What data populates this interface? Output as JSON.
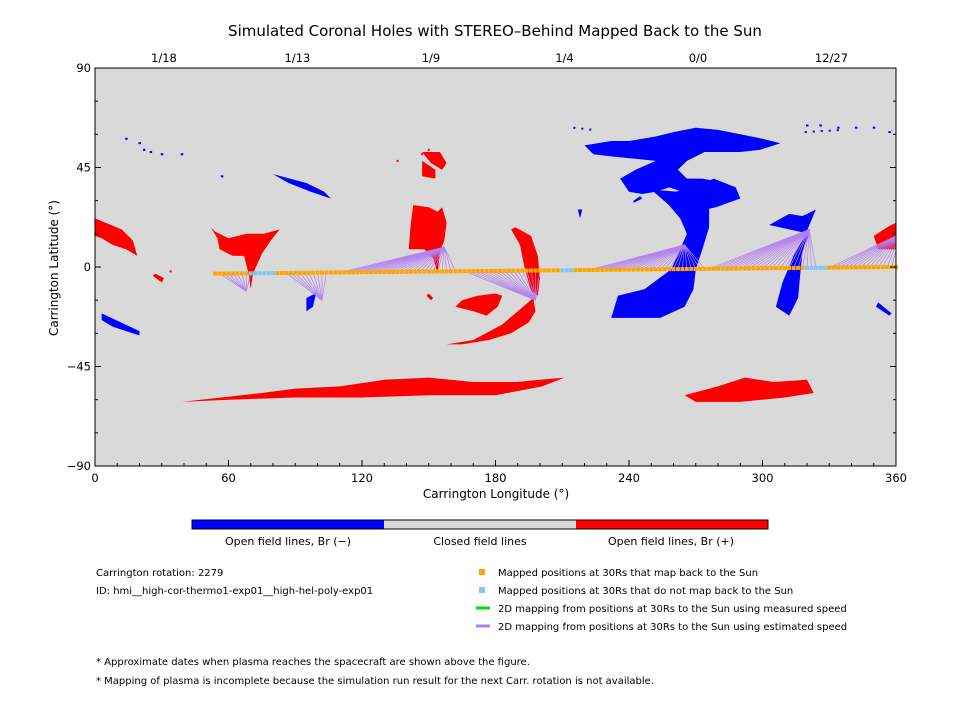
{
  "chart_data": {
    "type": "scatter",
    "title": "Simulated Coronal Holes with STEREO–Behind Mapped Back to the Sun",
    "xlabel": "Carrington Longitude (°)",
    "ylabel": "Carrington Latitude (°)",
    "xlim": [
      0,
      360
    ],
    "ylim": [
      -90,
      90
    ],
    "x_ticks": [
      0,
      60,
      120,
      180,
      240,
      300,
      360
    ],
    "y_ticks": [
      90,
      45,
      0,
      -45,
      -90
    ],
    "y_tick_labels": [
      "90",
      "45",
      "0",
      "−45",
      "−90"
    ],
    "top_axis_dates": [
      {
        "lon": 31,
        "label": "1/18"
      },
      {
        "lon": 91,
        "label": "1/13"
      },
      {
        "lon": 151,
        "label": "1/9"
      },
      {
        "lon": 211,
        "label": "1/4"
      },
      {
        "lon": 271,
        "label": "0/0"
      },
      {
        "lon": 331,
        "label": "12/27"
      }
    ],
    "colors": {
      "closed": "#d9d9d9",
      "open_negative": "#0000ff",
      "open_positive": "#ff0000",
      "mapped": "#ffa500",
      "unmapped": "#7ec8f8",
      "measured_line": "#00dd00",
      "estimated_line": "#b380f0"
    },
    "positive_regions": [
      [
        [
          0,
          22
        ],
        [
          12,
          17
        ],
        [
          17,
          12
        ],
        [
          19,
          5
        ],
        [
          14,
          8
        ],
        [
          8,
          10
        ],
        [
          3,
          13
        ],
        [
          0,
          14
        ]
      ],
      [
        [
          27,
          -3
        ],
        [
          31,
          -5
        ],
        [
          30,
          -7
        ],
        [
          26,
          -4
        ]
      ],
      [
        [
          52,
          18
        ],
        [
          55,
          13
        ],
        [
          56,
          8
        ],
        [
          62,
          5
        ],
        [
          67,
          5
        ],
        [
          69,
          -3
        ],
        [
          70,
          -10
        ],
        [
          71,
          -3
        ],
        [
          75,
          6
        ],
        [
          79,
          12
        ],
        [
          83,
          17
        ],
        [
          76,
          15
        ],
        [
          68,
          15
        ],
        [
          60,
          13
        ],
        [
          54,
          16
        ]
      ],
      [
        [
          141,
          8
        ],
        [
          142,
          20
        ],
        [
          143,
          28
        ],
        [
          150,
          27
        ],
        [
          154,
          25
        ],
        [
          156,
          27
        ],
        [
          158,
          20
        ],
        [
          157,
          12
        ],
        [
          155,
          7
        ],
        [
          154,
          -3
        ],
        [
          152,
          4
        ],
        [
          148,
          8
        ]
      ],
      [
        [
          147,
          52
        ],
        [
          155,
          52
        ],
        [
          158,
          47
        ],
        [
          156,
          44
        ],
        [
          151,
          47
        ]
      ],
      [
        [
          162,
          -18
        ],
        [
          170,
          -20
        ],
        [
          176,
          -22
        ],
        [
          181,
          -18
        ],
        [
          183,
          -13
        ],
        [
          180,
          -12
        ],
        [
          172,
          -13
        ],
        [
          165,
          -15
        ]
      ],
      [
        [
          158,
          -35
        ],
        [
          170,
          -33
        ],
        [
          183,
          -26
        ],
        [
          190,
          -20
        ],
        [
          197,
          -14
        ],
        [
          198,
          -20
        ],
        [
          195,
          -25
        ],
        [
          187,
          -30
        ],
        [
          177,
          -33
        ],
        [
          165,
          -35
        ]
      ],
      [
        [
          189,
          18
        ],
        [
          196,
          14
        ],
        [
          199,
          5
        ],
        [
          200,
          -5
        ],
        [
          199,
          -13
        ],
        [
          196,
          -11
        ],
        [
          193,
          0
        ],
        [
          191,
          10
        ],
        [
          187,
          17
        ]
      ],
      [
        [
          39,
          -61
        ],
        [
          75,
          -57
        ],
        [
          90,
          -55
        ],
        [
          110,
          -54
        ],
        [
          130,
          -51
        ],
        [
          150,
          -50
        ],
        [
          170,
          -52
        ],
        [
          190,
          -52
        ],
        [
          200,
          -51
        ],
        [
          211,
          -50
        ],
        [
          201,
          -54
        ],
        [
          180,
          -58
        ],
        [
          150,
          -58
        ],
        [
          120,
          -59
        ],
        [
          90,
          -59
        ],
        [
          60,
          -60
        ]
      ],
      [
        [
          265,
          -58
        ],
        [
          280,
          -54
        ],
        [
          292,
          -50
        ],
        [
          305,
          -52
        ],
        [
          320,
          -51
        ],
        [
          323,
          -57
        ],
        [
          310,
          -59
        ],
        [
          290,
          -61
        ],
        [
          270,
          -61
        ]
      ],
      [
        [
          350,
          14
        ],
        [
          356,
          18
        ],
        [
          360,
          20
        ],
        [
          360,
          8
        ],
        [
          352,
          8
        ]
      ],
      [
        [
          147,
          48
        ],
        [
          153,
          44
        ],
        [
          153,
          40
        ],
        [
          147,
          41
        ]
      ],
      [
        [
          150,
          -12
        ],
        [
          152,
          -14
        ],
        [
          151,
          -15
        ],
        [
          149,
          -13
        ]
      ]
    ],
    "negative_regions": [
      [
        [
          220,
          55
        ],
        [
          232,
          57
        ],
        [
          240,
          57
        ],
        [
          252,
          59
        ],
        [
          260,
          61
        ],
        [
          270,
          63
        ],
        [
          280,
          62
        ],
        [
          290,
          60
        ],
        [
          300,
          58
        ],
        [
          308,
          56
        ],
        [
          299,
          53
        ],
        [
          290,
          52
        ],
        [
          281,
          52
        ],
        [
          274,
          52
        ],
        [
          266,
          48
        ],
        [
          262,
          44
        ],
        [
          266,
          40
        ],
        [
          273,
          40
        ],
        [
          278,
          39
        ],
        [
          274,
          36
        ],
        [
          264,
          34
        ],
        [
          258,
          36
        ],
        [
          252,
          34
        ],
        [
          246,
          33
        ],
        [
          240,
          34
        ],
        [
          236,
          40
        ],
        [
          243,
          44
        ],
        [
          252,
          48
        ],
        [
          232,
          50
        ],
        [
          224,
          51
        ]
      ],
      [
        [
          250,
          35
        ],
        [
          258,
          28
        ],
        [
          263,
          22
        ],
        [
          266,
          15
        ],
        [
          263,
          8
        ],
        [
          259,
          -1
        ],
        [
          247,
          -10
        ],
        [
          235,
          -13
        ],
        [
          232,
          -23
        ],
        [
          254,
          -23
        ],
        [
          265,
          -18
        ],
        [
          269,
          -10
        ],
        [
          270,
          -1
        ],
        [
          273,
          8
        ],
        [
          276,
          18
        ],
        [
          276,
          27
        ],
        [
          272,
          32
        ],
        [
          262,
          34
        ]
      ],
      [
        [
          303,
          19
        ],
        [
          312,
          24
        ],
        [
          318,
          23
        ],
        [
          324,
          26
        ],
        [
          319,
          14
        ],
        [
          314,
          5
        ],
        [
          309,
          -7
        ],
        [
          306,
          -18
        ],
        [
          312,
          -22
        ],
        [
          316,
          -14
        ],
        [
          317,
          -3
        ],
        [
          318,
          7
        ],
        [
          321,
          15
        ]
      ],
      [
        [
          261,
          34
        ],
        [
          272,
          37
        ],
        [
          278,
          40
        ],
        [
          288,
          36
        ],
        [
          290,
          31
        ],
        [
          279,
          27
        ],
        [
          270,
          25
        ]
      ],
      [
        [
          80,
          42
        ],
        [
          95,
          38
        ],
        [
          103,
          34
        ],
        [
          106,
          31
        ],
        [
          97,
          34
        ],
        [
          87,
          38
        ]
      ],
      [
        [
          3,
          -21
        ],
        [
          20,
          -29
        ],
        [
          20,
          -31
        ],
        [
          8,
          -27
        ],
        [
          3,
          -24
        ]
      ],
      [
        [
          95,
          -14
        ],
        [
          99,
          -12
        ],
        [
          100,
          -9
        ],
        [
          98,
          -18
        ],
        [
          95,
          -20
        ]
      ],
      [
        [
          242,
          30
        ],
        [
          245,
          32
        ],
        [
          246,
          31
        ],
        [
          242,
          29
        ]
      ],
      [
        [
          217,
          26
        ],
        [
          218,
          22
        ],
        [
          219,
          26
        ]
      ],
      [
        [
          352,
          -16
        ],
        [
          358,
          -21
        ],
        [
          357,
          -22
        ],
        [
          351,
          -18
        ]
      ],
      [
        [
          215,
          63
        ],
        [
          224,
          62
        ]
      ],
      [
        [
          319,
          61
        ],
        [
          336,
          62
        ]
      ]
    ],
    "tiny_negative": [
      [
        14,
        58
      ],
      [
        20,
        56
      ],
      [
        22,
        53
      ],
      [
        25,
        52
      ],
      [
        30,
        51
      ],
      [
        39,
        51
      ],
      [
        57,
        41
      ],
      [
        320,
        64
      ],
      [
        326,
        64
      ],
      [
        334,
        63
      ],
      [
        342,
        63
      ],
      [
        350,
        63
      ],
      [
        357,
        61
      ],
      [
        365,
        61
      ]
    ],
    "tiny_positive": [
      [
        150,
        53
      ],
      [
        155,
        50
      ],
      [
        136,
        48
      ],
      [
        147,
        51
      ],
      [
        34,
        -2
      ],
      [
        74,
        7
      ]
    ],
    "mapped_points": {
      "lon_start": 54,
      "lon_end": 360,
      "step": 2,
      "lat_start": -3,
      "lat_end": 0,
      "unmapped_lon_ranges": [
        [
          70,
          80
        ],
        [
          210,
          214
        ],
        [
          320,
          328
        ]
      ]
    },
    "estimated_lines": [
      {
        "foot": [
          68,
          -11
        ],
        "x0": 56,
        "x1": 70
      },
      {
        "foot": [
          102,
          -15
        ],
        "x0": 86,
        "x1": 104
      },
      {
        "foot": [
          157,
          9
        ],
        "x0": 110,
        "x1": 163
      },
      {
        "foot": [
          198,
          -15
        ],
        "x0": 166,
        "x1": 201
      },
      {
        "foot": [
          265,
          10
        ],
        "x0": 222,
        "x1": 275
      },
      {
        "foot": [
          321,
          17
        ],
        "x0": 276,
        "x1": 325
      },
      {
        "foot": [
          362,
          15
        ],
        "x0": 330,
        "x1": 360
      }
    ],
    "colorbar": {
      "labels": [
        "Open field lines, Br (−)",
        "Closed field lines",
        "Open field lines, Br (+)"
      ]
    },
    "info": {
      "rotation": "Carrington rotation: 2279",
      "id": "ID: hmi__high-cor-thermo1-exp01__high-hel-poly-exp01"
    },
    "legend": [
      {
        "kind": "square",
        "color": "#ffa500",
        "label": "Mapped positions at 30Rs that map back to the Sun"
      },
      {
        "kind": "square",
        "color": "#7ec8f8",
        "label": "Mapped positions at 30Rs that do not map back to the Sun"
      },
      {
        "kind": "line",
        "color": "#00dd00",
        "label": "2D mapping from positions at 30Rs to the Sun using measured speed"
      },
      {
        "kind": "line",
        "color": "#b380f0",
        "label": "2D mapping from positions at 30Rs to the Sun using estimated speed"
      }
    ],
    "notes": [
      "* Approximate dates when plasma reaches the spacecraft are shown above the figure.",
      "* Mapping of plasma is incomplete because the simulation run result for the next Carr. rotation is not available."
    ]
  }
}
